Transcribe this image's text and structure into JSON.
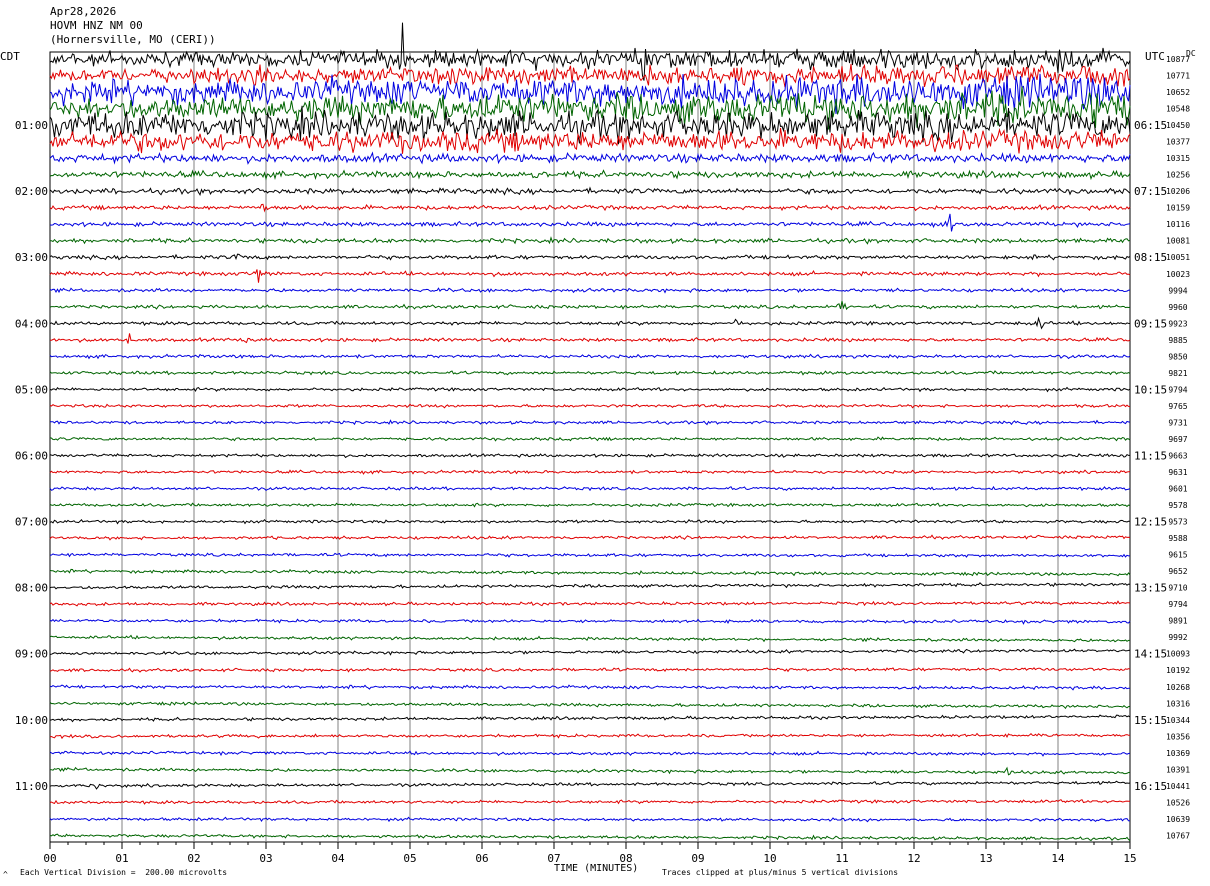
{
  "header": {
    "date": "Apr28,2026",
    "station": "HOVM HNZ NM 00",
    "location": "(Hornersville, MO (CERI))"
  },
  "left_tz": "CDT",
  "right_tz": "UTC",
  "dc_label": "DC",
  "footer": {
    "scale_note": "Each Vertical Division =  200.00 microvolts",
    "clip_note": "Traces clipped at plus/minus 5 vertical divisions",
    "corner_mark": "^"
  },
  "colors": {
    "trace_cycle": [
      "#000000",
      "#e00000",
      "#0000e0",
      "#006400"
    ],
    "grid": "#808080"
  },
  "chart_data": {
    "type": "line",
    "title": "Apr28,2026 HOVM HNZ NM 00 (Hornersville, MO (CERI))",
    "xlabel": "TIME (MINUTES)",
    "xlim": [
      0,
      15
    ],
    "x_ticks": [
      "00",
      "01",
      "02",
      "03",
      "04",
      "05",
      "06",
      "07",
      "08",
      "09",
      "10",
      "11",
      "12",
      "13",
      "14",
      "15"
    ],
    "grid": true,
    "row_count": 48,
    "left_hour_labels": [
      "01:00",
      "02:00",
      "03:00",
      "04:00",
      "05:00",
      "06:00",
      "07:00",
      "08:00",
      "09:00",
      "10:00",
      "11:00"
    ],
    "right_hour_labels": [
      "06:15",
      "07:15",
      "08:15",
      "09:15",
      "10:15",
      "11:15",
      "12:15",
      "13:15",
      "14:15",
      "15:15",
      "16:15"
    ],
    "dc_offsets": [
      "10877",
      "10771",
      "10652",
      "10548",
      "10450",
      "10377",
      "10315",
      "10256",
      "10206",
      "10159",
      "10116",
      "10081",
      "10051",
      "10023",
      "9994",
      "9960",
      "9923",
      "9885",
      "9850",
      "9821",
      "9794",
      "9765",
      "9731",
      "9697",
      "9663",
      "9631",
      "9601",
      "9578",
      "9573",
      "9588",
      "9615",
      "9652",
      "9710",
      "9794",
      "9891",
      "9992",
      "10093",
      "10192",
      "10268",
      "10316",
      "10344",
      "10356",
      "10369",
      "10391",
      "10441",
      "10526",
      "10639",
      "10767"
    ],
    "noise_amplitude": [
      9,
      9,
      14,
      14,
      13,
      10,
      4,
      3,
      2.5,
      2,
      2,
      2,
      1.8,
      1.8,
      1.6,
      1.6,
      1.6,
      1.6,
      1.5,
      1.5,
      1.4,
      1.4,
      1.4,
      1.4,
      1.4,
      1.4,
      1.4,
      1.4,
      1.4,
      1.4,
      1.4,
      1.4,
      1.4,
      1.4,
      1.4,
      1.4,
      1.4,
      1.4,
      1.4,
      1.4,
      1.4,
      1.4,
      1.4,
      1.4,
      1.4,
      1.4,
      1.4,
      1.4
    ],
    "events": [
      {
        "row": 0,
        "minute": 4.9,
        "amp": 40
      },
      {
        "row": 0,
        "minute": 8.25,
        "amp": 35
      },
      {
        "row": 1,
        "minute": 2.9,
        "amp": 20
      },
      {
        "row": 4,
        "minute": 0.35,
        "amp": 18
      },
      {
        "row": 5,
        "minute": 0.3,
        "amp": 14
      },
      {
        "row": 5,
        "minute": 9.7,
        "amp": 14
      },
      {
        "row": 7,
        "minute": 6.75,
        "amp": 10
      },
      {
        "row": 8,
        "minute": 0.9,
        "amp": 6
      },
      {
        "row": 9,
        "minute": 2.95,
        "amp": 6
      },
      {
        "row": 10,
        "minute": 12.5,
        "amp": 14
      },
      {
        "row": 11,
        "minute": 3.65,
        "amp": 10
      },
      {
        "row": 12,
        "minute": 2.6,
        "amp": 5
      },
      {
        "row": 13,
        "minute": 2.9,
        "amp": 12
      },
      {
        "row": 13,
        "minute": 1.25,
        "amp": 5
      },
      {
        "row": 15,
        "minute": 11.0,
        "amp": 10
      },
      {
        "row": 16,
        "minute": 9.55,
        "amp": 7
      },
      {
        "row": 16,
        "minute": 13.75,
        "amp": 12
      },
      {
        "row": 17,
        "minute": 1.1,
        "amp": 10
      },
      {
        "row": 17,
        "minute": 2.7,
        "amp": 4
      },
      {
        "row": 18,
        "minute": 10.7,
        "amp": 3
      },
      {
        "row": 29,
        "minute": 3.1,
        "amp": 4
      },
      {
        "row": 44,
        "minute": 0.65,
        "amp": 4
      },
      {
        "row": 43,
        "minute": 13.3,
        "amp": 6
      }
    ]
  }
}
